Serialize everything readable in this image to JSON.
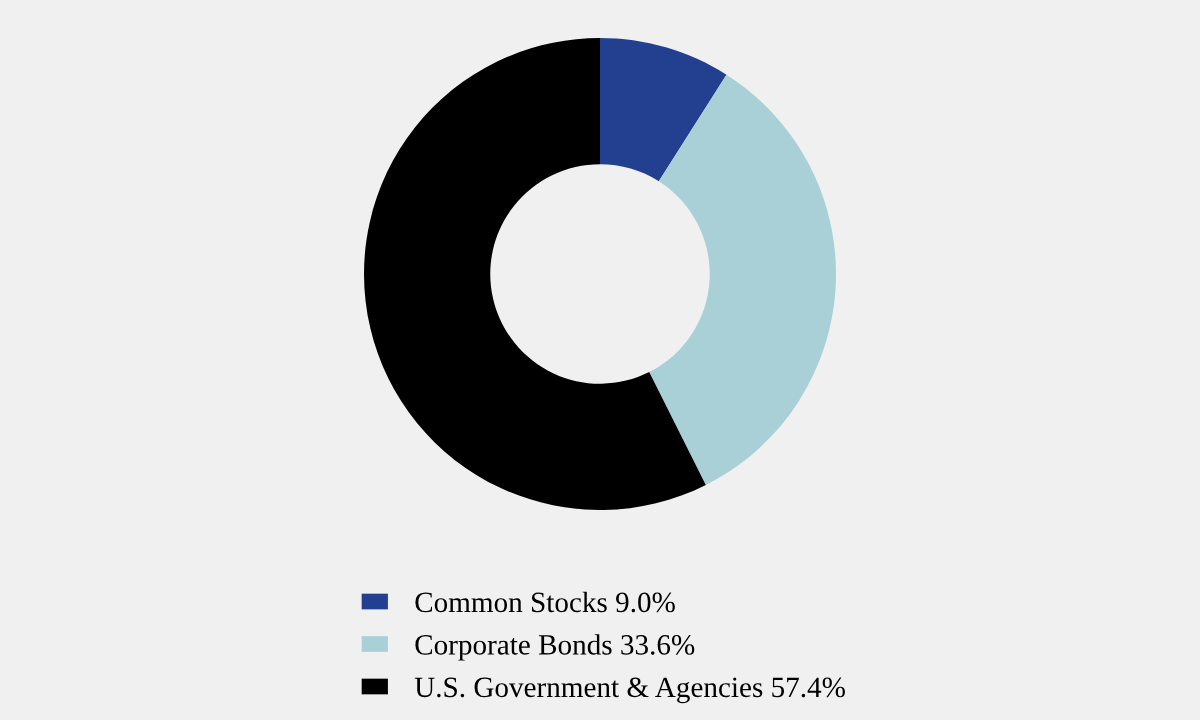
{
  "chart_data": {
    "type": "donut",
    "categories": [
      "Common Stocks",
      "Corporate Bonds",
      "U.S. Government & Agencies"
    ],
    "values": [
      9.0,
      33.6,
      57.4
    ],
    "value_labels": [
      "9.0%",
      "33.6%",
      "57.4%"
    ],
    "colors": [
      "#233f8f",
      "#a8d0d6",
      "#000000"
    ],
    "legend": "bottom"
  }
}
